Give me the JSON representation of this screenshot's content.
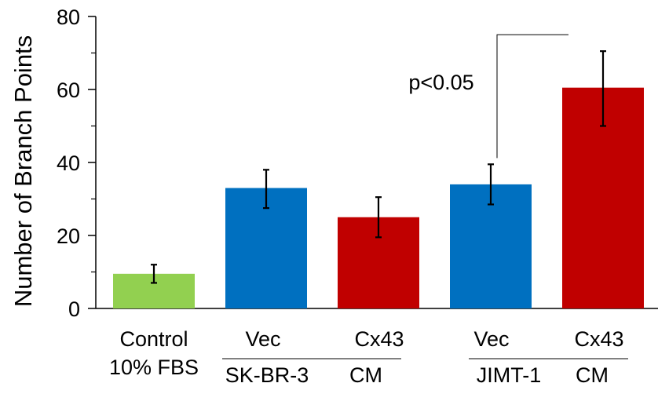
{
  "chart_data": {
    "type": "bar",
    "ylabel": "Number of Branch Points",
    "ylim": [
      0,
      80
    ],
    "yticks": [
      0,
      20,
      40,
      60,
      80
    ],
    "grid": false,
    "categories": [
      {
        "label": "Control",
        "label2": "10% FBS"
      },
      {
        "label": "Vec"
      },
      {
        "label": "Cx43"
      },
      {
        "label": "Vec"
      },
      {
        "label": "Cx43"
      }
    ],
    "values": [
      9.5,
      33.0,
      25.0,
      34.0,
      60.5
    ],
    "error_low": [
      7.0,
      27.5,
      19.5,
      28.5,
      50.0
    ],
    "error_high": [
      12.0,
      38.0,
      30.5,
      39.5,
      70.5
    ],
    "colors": [
      "#92d050",
      "#0070c0",
      "#c00000",
      "#0070c0",
      "#c00000"
    ],
    "groups": [
      {
        "label": "SK-BR-3",
        "suffix": "CM",
        "categories": [
          1,
          2
        ]
      },
      {
        "label": "JIMT-1",
        "suffix": "CM",
        "categories": [
          3,
          4
        ]
      }
    ],
    "annotation": {
      "text": "p<0.05",
      "between": [
        3,
        4
      ],
      "bracket_top": 75
    }
  }
}
